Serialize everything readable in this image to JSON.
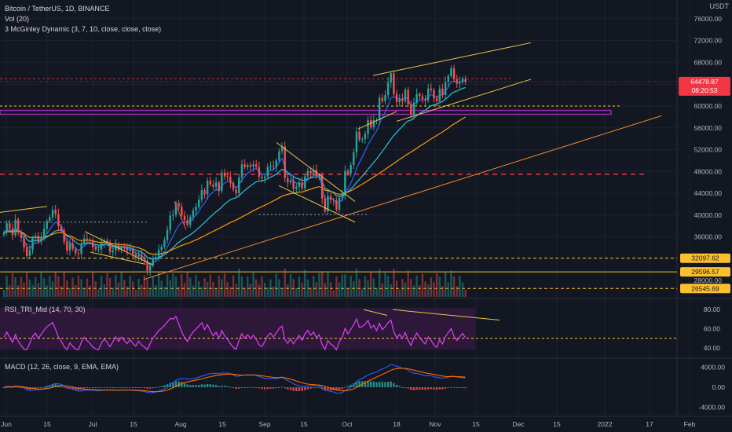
{
  "header": {
    "symbol": "Bitcoin / TetherUS, 1D, BINANCE",
    "volume_indicator": "Vol (20)",
    "mcginley": "3 McGinley Dynamic (3, 7, 10, close, close, close)",
    "currency": "USDT"
  },
  "rsi_panel": {
    "label": "RSI_TRI_Mid (14, 70, 30)"
  },
  "macd_panel": {
    "label": "MACD (12, 26, close, 9, EMA, EMA)"
  },
  "colors": {
    "background": "#131722",
    "up": "#26a69a",
    "down": "#ef5350",
    "grid": "#1e2230",
    "price_tag": "#f23645",
    "yellow_tag": "#fbc02d",
    "rsi_line": "#e040fb",
    "rsi_band": "#3a1a44",
    "macd_line": "#2962ff",
    "signal_line": "#ff6d00",
    "trendline_yellow": "#e8c547",
    "trendline_orange": "#f0892f",
    "mg_blue": "#2962ff",
    "mg_teal": "#26c6da",
    "mg_orange": "#ff9800",
    "hline_red": "#f23645",
    "hline_purple": "#9c27b0"
  },
  "chart_data": {
    "type": "candlestick",
    "x_ticks": [
      "Jun",
      "15",
      "Jul",
      "15",
      "Aug",
      "15",
      "Sep",
      "15",
      "Oct",
      "18",
      "Nov",
      "15",
      "Dec",
      "15",
      "2022",
      "17",
      "Feb"
    ],
    "y_ticks": [
      "76000.00",
      "72000.00",
      "68000.00",
      "64000.00",
      "60000.00",
      "56000.00",
      "52000.00",
      "48000.00",
      "44000.00",
      "40000.00",
      "36000.00",
      "28000.00"
    ],
    "y_range": [
      25000,
      78000
    ],
    "last_price": "64478.87",
    "countdown": "08:20:53",
    "price_labels": [
      "32097.62",
      "29596.57",
      "26545.69"
    ],
    "price_label_values": [
      32097.62,
      29596.57,
      26545.69
    ],
    "horizontal_levels": [
      {
        "value": 60000,
        "style": "dashed",
        "color": "yellow"
      },
      {
        "value": 59000,
        "style": "band",
        "color": "purple"
      },
      {
        "value": 47500,
        "style": "dashed",
        "color": "red"
      },
      {
        "value": 65000,
        "style": "dashed",
        "color": "red"
      },
      {
        "value": 40000,
        "style": "dashed",
        "color": "white"
      },
      {
        "value": 39000,
        "style": "dashed",
        "color": "white"
      }
    ],
    "closes": [
      36800,
      38500,
      37600,
      36300,
      39200,
      36800,
      35800,
      34100,
      32500,
      33600,
      35800,
      36200,
      35100,
      36000,
      37500,
      38900,
      39600,
      41000,
      40200,
      38000,
      37200,
      35100,
      33500,
      34800,
      33800,
      33000,
      32900,
      34700,
      35700,
      35500,
      35300,
      34100,
      33700,
      33700,
      34900,
      35300,
      34800,
      33200,
      33500,
      34600,
      33600,
      34200,
      34000,
      33500,
      33800,
      32800,
      32400,
      32800,
      31800,
      31600,
      29800,
      30800,
      31900,
      32300,
      33600,
      34200,
      35400,
      37300,
      39900,
      40000,
      42200,
      41500,
      39900,
      39100,
      38200,
      39700,
      40800,
      41500,
      42800,
      44600,
      43800,
      46300,
      45600,
      45200,
      46000,
      44400,
      47800,
      47100,
      47000,
      45900,
      44700,
      44000,
      46900,
      49300,
      48800,
      49200,
      48900,
      49300,
      48800,
      47000,
      46800,
      47100,
      48800,
      49000,
      48900,
      50000,
      51700,
      52600,
      46800,
      46000,
      46400,
      44800,
      45200,
      46000,
      44900,
      47100,
      48100,
      47700,
      48300,
      47200,
      47300,
      43000,
      40700,
      43500,
      42800,
      42700,
      41000,
      43200,
      43800,
      48100,
      47600,
      49200,
      51500,
      55300,
      53800,
      53900,
      54900,
      57400,
      56100,
      57400,
      57400,
      61500,
      60900,
      62000,
      64300,
      66000,
      62200,
      60700,
      61300,
      60900,
      63000,
      60300,
      58400,
      60600,
      62200,
      61800,
      61300,
      61000,
      63200,
      62900,
      61400,
      60900,
      63200,
      62000,
      64400,
      65500,
      66900,
      64900,
      64100,
      64400,
      65000,
      64478
    ],
    "rsi": {
      "range": [
        30,
        90
      ],
      "ticks": [
        "80.00",
        "60.00",
        "40.00"
      ],
      "overbought": 70,
      "oversold": 30,
      "mid": 50
    },
    "macd": {
      "range": [
        -5500,
        5500
      ],
      "ticks": [
        "4000.00",
        "0.00",
        "-4000.00"
      ]
    }
  }
}
